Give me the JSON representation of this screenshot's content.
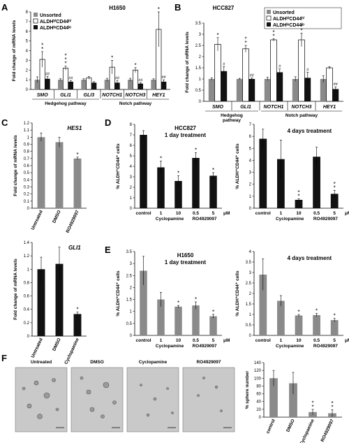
{
  "panels": {
    "A": "A",
    "B": "B",
    "C": "C",
    "D": "D",
    "E": "E",
    "F": "F"
  },
  "colors": {
    "gray": "#8a8a8a",
    "white": "#ffffff",
    "black": "#111111",
    "axis": "#000000"
  },
  "chart_data": [
    {
      "id": "A",
      "type": "bar",
      "title": "H1650",
      "ylabel": "Fold change of mRNA levels",
      "ylim": [
        0,
        8
      ],
      "yticks": [
        0,
        1,
        2,
        3,
        4,
        5,
        6,
        7,
        8
      ],
      "categories": [
        "SMO",
        "GLI1",
        "GLI3",
        "NOTCH1",
        "NOTCH3",
        "HEY1"
      ],
      "groups": [
        {
          "label": "Hedgehog pathway",
          "from": 0,
          "to": 2
        },
        {
          "label": "Notch pathway",
          "from": 3,
          "to": 5
        }
      ],
      "legend": [
        "Unsorted",
        "ALDHʰⁱCD44ʰⁱ",
        "ALDHˡᵒCD44ˡᵒ"
      ],
      "series": [
        {
          "name": "Unsorted",
          "color": "gray",
          "values": [
            1.0,
            1.0,
            1.0,
            1.0,
            1.0,
            1.0
          ],
          "errors": [
            0.3,
            0.1,
            0.1,
            0.15,
            0.15,
            0.1
          ],
          "marks": [
            "",
            "",
            "",
            "",
            "",
            ""
          ]
        },
        {
          "name": "ALDHʰⁱCD44ʰⁱ",
          "color": "white",
          "values": [
            3.1,
            2.2,
            1.2,
            2.3,
            2.0,
            6.2
          ],
          "errors": [
            0.8,
            0.2,
            0.15,
            0.7,
            0.25,
            1.8
          ],
          "marks": [
            "**",
            "***",
            "",
            "*",
            "*",
            "*"
          ]
        },
        {
          "name": "ALDHˡᵒCD44ˡᵒ",
          "color": "black",
          "values": [
            1.1,
            0.8,
            0.7,
            0.7,
            0.6,
            0.8
          ],
          "errors": [
            0.25,
            0.1,
            0.1,
            0.2,
            0.1,
            0.2
          ],
          "marks": [
            "##",
            "##",
            "",
            "##",
            "##",
            "##"
          ]
        }
      ]
    },
    {
      "id": "B",
      "type": "bar",
      "title": "HCC827",
      "ylabel": "Fold change of mRNA levels",
      "ylim": [
        0,
        3.5
      ],
      "yticks": [
        0,
        0.5,
        1,
        1.5,
        2,
        2.5,
        3,
        3.5
      ],
      "categories": [
        "SMO",
        "GLI1",
        "NOTCH1",
        "NOTCH3",
        "HEY1"
      ],
      "groups": [
        {
          "label": "Hedgehog pathway",
          "from": 0,
          "to": 1
        },
        {
          "label": "Notch pathway",
          "from": 2,
          "to": 4
        }
      ],
      "legend": [
        "Unsorted",
        "ALDHʰⁱCD44ʰⁱ",
        "ALDHˡᵒCD44ˡᵒ"
      ],
      "series": [
        {
          "name": "Unsorted",
          "color": "gray",
          "values": [
            1.0,
            1.0,
            1.0,
            1.0,
            1.0
          ],
          "errors": [
            0.05,
            0.03,
            0.08,
            0.1,
            0.15
          ],
          "marks": [
            "",
            "",
            "",
            "",
            ""
          ]
        },
        {
          "name": "ALDHʰⁱCD44ʰⁱ",
          "color": "white",
          "values": [
            2.55,
            2.35,
            2.75,
            2.75,
            1.5
          ],
          "errors": [
            0.3,
            0.15,
            0.05,
            0.3,
            0.05
          ],
          "marks": [
            "*",
            "**",
            "**",
            "**",
            ""
          ]
        },
        {
          "name": "ALDHˡᵒCD44ˡᵒ",
          "color": "black",
          "values": [
            1.35,
            1.0,
            1.3,
            1.05,
            0.55
          ],
          "errors": [
            0.2,
            0.05,
            0.15,
            0.25,
            0.1
          ],
          "marks": [
            "#",
            "##",
            "#",
            "#",
            "##"
          ]
        }
      ]
    },
    {
      "id": "C1",
      "type": "bar",
      "title": "HES1",
      "ylabel": "Fold change of mRNA levels",
      "ylim": [
        0,
        1.2
      ],
      "yticks": [
        0,
        0.1,
        0.2,
        0.3,
        0.4,
        0.5,
        0.6,
        0.7,
        0.8,
        0.9,
        1,
        1.1,
        1.2
      ],
      "categories": [
        "Untreated",
        "DMSO",
        "RO4929097"
      ],
      "series": [
        {
          "name": "",
          "color": "gray",
          "values": [
            1.0,
            0.93,
            0.7
          ],
          "errors": [
            0.06,
            0.07,
            0.02
          ],
          "marks": [
            "",
            "",
            "*"
          ]
        }
      ]
    },
    {
      "id": "C2",
      "type": "bar",
      "title": "GLI1",
      "ylabel": "Fold change of mRNA levels",
      "ylim": [
        0,
        1.4
      ],
      "yticks": [
        0,
        0.2,
        0.4,
        0.6,
        0.8,
        1,
        1.2,
        1.4
      ],
      "categories": [
        "Untreated",
        "DMSO",
        "Cyclopamine"
      ],
      "series": [
        {
          "name": "",
          "color": "black",
          "values": [
            1.0,
            1.08,
            0.33
          ],
          "errors": [
            0.18,
            0.25,
            0.03
          ],
          "marks": [
            "",
            "",
            "*"
          ]
        }
      ]
    },
    {
      "id": "D1",
      "type": "bar",
      "title": "HCC827",
      "subtitle": "1 day treatment",
      "ylabel": "% ALDH⁺CD44⁺ cells",
      "ylim": [
        0,
        8
      ],
      "yticks": [
        0,
        1,
        2,
        3,
        4,
        5,
        6,
        7,
        8
      ],
      "categories": [
        "control",
        "1",
        "10",
        "0.5",
        "5"
      ],
      "unit": "μM",
      "xgroups": [
        "Cyclopamine",
        "RO4929097"
      ],
      "series": [
        {
          "name": "",
          "color": "black",
          "values": [
            7.0,
            3.9,
            2.6,
            4.8,
            3.1
          ],
          "errors": [
            0.4,
            0.6,
            0.5,
            0.5,
            0.3
          ],
          "marks": [
            "",
            "*",
            "*",
            "*",
            "*"
          ]
        }
      ]
    },
    {
      "id": "D2",
      "type": "bar",
      "title": "4 days treatment",
      "ylabel": "% ALDH⁺CD44⁺ cells",
      "ylim": [
        0,
        7
      ],
      "yticks": [
        0,
        1,
        2,
        3,
        4,
        5,
        6,
        7
      ],
      "categories": [
        "control",
        "1",
        "10",
        "0.5",
        "5"
      ],
      "unit": "μM",
      "xgroups": [
        "Cyclopamine",
        "RO4929097"
      ],
      "series": [
        {
          "name": "",
          "color": "black",
          "values": [
            5.8,
            4.1,
            0.7,
            4.3,
            1.2
          ],
          "errors": [
            0.8,
            1.6,
            0.1,
            0.8,
            0.3
          ],
          "marks": [
            "",
            "",
            "**",
            "",
            "**"
          ]
        }
      ]
    },
    {
      "id": "E1",
      "type": "bar",
      "title": "H1650",
      "subtitle": "1 day treatment",
      "ylabel": "% ALDH⁺CD44⁺ cells",
      "ylim": [
        0,
        3.5
      ],
      "yticks": [
        0,
        0.5,
        1,
        1.5,
        2,
        2.5,
        3,
        3.5
      ],
      "categories": [
        "control",
        "1",
        "10",
        "0.5",
        "5"
      ],
      "unit": "μM",
      "xgroups": [
        "Cyclopamine",
        "RO4929097"
      ],
      "series": [
        {
          "name": "",
          "color": "gray",
          "values": [
            2.7,
            1.5,
            1.2,
            1.25,
            0.8
          ],
          "errors": [
            0.6,
            0.3,
            0.05,
            0.15,
            0.08
          ],
          "marks": [
            "",
            "",
            "*",
            "*",
            "*"
          ]
        }
      ]
    },
    {
      "id": "E2",
      "type": "bar",
      "title": "4 days treatment",
      "ylabel": "% ALDH⁺CD44⁺ cells",
      "ylim": [
        0,
        4
      ],
      "yticks": [
        0,
        0.5,
        1,
        1.5,
        2,
        2.5,
        3,
        3.5,
        4
      ],
      "categories": [
        "control",
        "1",
        "10",
        "0.5",
        "5"
      ],
      "unit": "μM",
      "xgroups": [
        "Cyclopamine",
        "RO4929097"
      ],
      "series": [
        {
          "name": "",
          "color": "gray",
          "values": [
            2.9,
            1.65,
            0.95,
            0.97,
            0.73
          ],
          "errors": [
            0.75,
            0.25,
            0.05,
            0.08,
            0.08
          ],
          "marks": [
            "",
            "",
            "*",
            "*",
            "*"
          ]
        }
      ]
    },
    {
      "id": "F",
      "type": "bar",
      "ylabel": "% sphere number",
      "ylim": [
        0,
        140
      ],
      "yticks": [
        0,
        20,
        40,
        60,
        80,
        100,
        120,
        140
      ],
      "categories": [
        "control",
        "DMSO",
        "Cyclopamine",
        "RO4929097"
      ],
      "series": [
        {
          "name": "",
          "color": "gray",
          "values": [
            100,
            87,
            13,
            10
          ],
          "errors": [
            20,
            28,
            7,
            9
          ],
          "marks": [
            "",
            "",
            "**",
            "**"
          ]
        }
      ]
    }
  ],
  "micrographs": {
    "labels": [
      "Untreated",
      "DMSO",
      "Cyclopamine",
      "RO4929097"
    ]
  }
}
